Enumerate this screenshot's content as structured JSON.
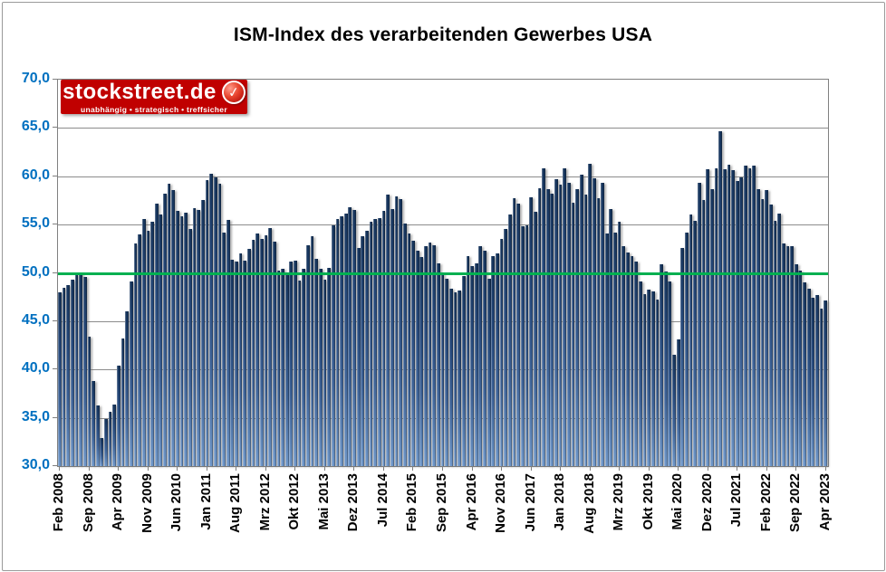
{
  "title": "ISM-Index des verarbeitenden Gewerbes USA",
  "logo": {
    "text": "stockstreet.de",
    "tagline": "unabhängig • strategisch • treffsicher",
    "bg_color": "#C00000",
    "check_icon": "✓"
  },
  "chart_data": {
    "type": "bar",
    "title": "ISM-Index des verarbeitenden Gewerbes USA",
    "x_start": "Feb 2008",
    "x_end": "Apr 2023",
    "x_tick_every": 7,
    "x_tick_labels": [
      "Feb 2008",
      "Sep 2008",
      "Apr 2009",
      "Nov 2009",
      "Jun 2010",
      "Jan 2011",
      "Aug 2011",
      "Mrz 2012",
      "Okt 2012",
      "Mai 2013",
      "Dez 2013",
      "Jul 2014",
      "Feb 2015",
      "Sep 2015",
      "Apr 2016",
      "Nov 2016",
      "Jun 2017",
      "Jan 2018",
      "Aug 2018",
      "Mrz 2019",
      "Okt 2019",
      "Mai 2020",
      "Dez 2020",
      "Jul 2021",
      "Feb 2022",
      "Sep 2022",
      "Apr 2023"
    ],
    "y_ticks": [
      70,
      65,
      60,
      55,
      50,
      45,
      40,
      35,
      30
    ],
    "y_tick_labels": [
      "70,0",
      "65,0",
      "60,0",
      "55,0",
      "50,0",
      "45,0",
      "40,0",
      "35,0",
      "30,0"
    ],
    "ylim": [
      30,
      70
    ],
    "grid": true,
    "legend": "none",
    "reference_line": {
      "value": 50.0,
      "color": "#00B050"
    },
    "bar_color_top": "#16345B",
    "bar_color_bottom": "#6E96C8",
    "axis_label_color": "#0070C0",
    "gridline_color": "#8c8c8c",
    "values": [
      48.0,
      48.5,
      48.7,
      49.3,
      49.9,
      50.0,
      49.6,
      43.4,
      38.8,
      36.3,
      32.9,
      34.9,
      35.6,
      36.4,
      40.4,
      43.2,
      46.0,
      49.1,
      53.0,
      54.0,
      55.6,
      54.4,
      55.3,
      57.2,
      56.0,
      58.2,
      59.2,
      58.6,
      56.4,
      55.9,
      56.2,
      54.5,
      56.7,
      56.5,
      57.5,
      59.6,
      60.3,
      59.9,
      59.2,
      54.2,
      55.5,
      51.4,
      51.2,
      52.0,
      51.3,
      52.5,
      53.4,
      54.1,
      53.5,
      53.9,
      54.6,
      53.2,
      50.2,
      50.4,
      49.9,
      51.2,
      51.3,
      49.2,
      50.4,
      52.9,
      53.8,
      51.5,
      50.4,
      49.3,
      50.5,
      54.9,
      55.6,
      55.9,
      56.1,
      56.8,
      56.5,
      52.6,
      53.8,
      54.4,
      55.3,
      55.6,
      55.7,
      56.4,
      58.1,
      56.6,
      57.9,
      57.6,
      55.1,
      54.1,
      53.3,
      52.3,
      51.6,
      52.8,
      53.1,
      52.9,
      51.0,
      50.0,
      49.4,
      48.4,
      48.0,
      48.2,
      49.7,
      51.7,
      50.7,
      51.0,
      52.8,
      52.3,
      49.4,
      51.7,
      52.0,
      53.5,
      54.5,
      56.0,
      57.7,
      57.2,
      54.8,
      54.9,
      57.8,
      56.3,
      58.8,
      60.8,
      58.7,
      58.2,
      59.7,
      59.1,
      60.8,
      59.3,
      57.3,
      58.7,
      60.2,
      58.1,
      61.3,
      59.8,
      57.7,
      59.3,
      54.1,
      56.6,
      54.2,
      55.3,
      52.8,
      52.1,
      51.7,
      51.2,
      49.1,
      47.8,
      48.3,
      48.1,
      47.2,
      50.9,
      50.1,
      49.1,
      41.5,
      43.1,
      52.6,
      54.2,
      56.0,
      55.4,
      59.3,
      57.5,
      60.7,
      58.7,
      60.8,
      64.7,
      60.7,
      61.2,
      60.6,
      59.5,
      59.9,
      61.1,
      60.8,
      61.1,
      58.7,
      57.6,
      58.6,
      57.1,
      55.4,
      56.1,
      53.0,
      52.8,
      52.8,
      50.9,
      50.2,
      49.0,
      48.4,
      47.4,
      47.7,
      46.3,
      47.1
    ]
  }
}
